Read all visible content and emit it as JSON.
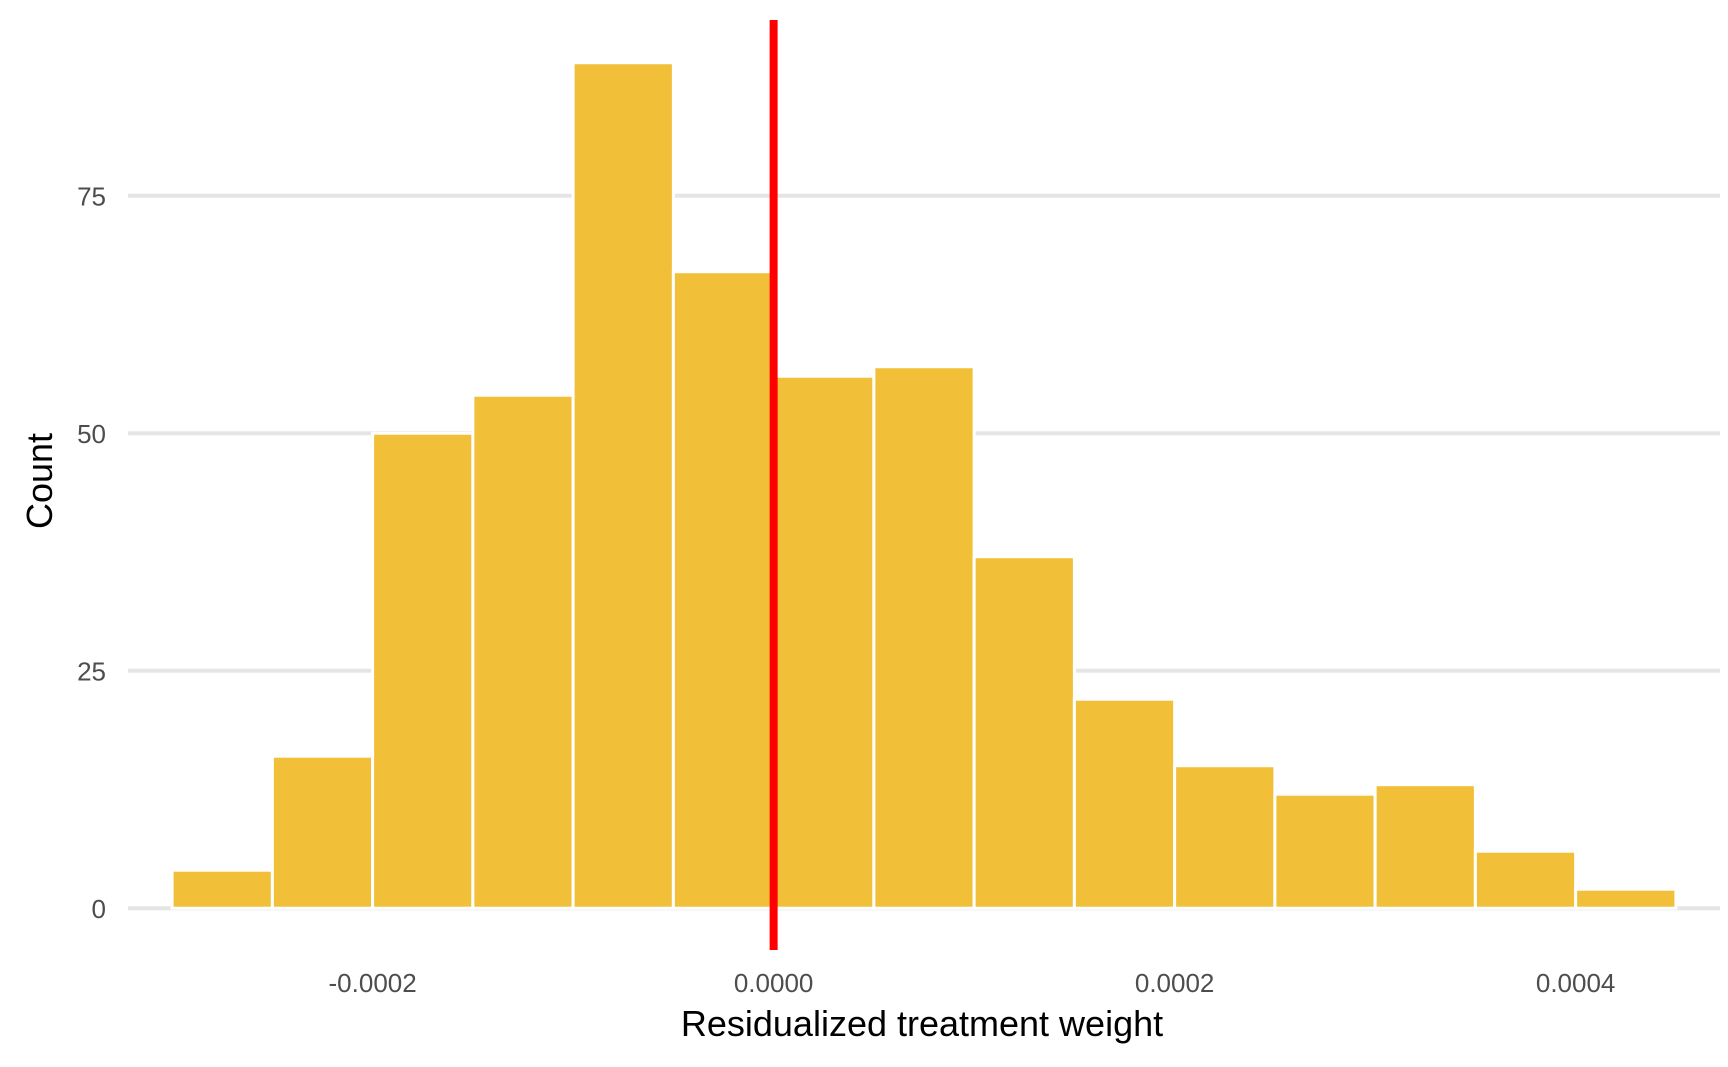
{
  "chart_data": {
    "type": "bar",
    "subtype": "histogram",
    "xlabel": "Residualized treatment weight",
    "ylabel": "Count",
    "bins": [
      {
        "x0": -0.0003,
        "x1": -0.00025,
        "count": 4
      },
      {
        "x0": -0.00025,
        "x1": -0.0002,
        "count": 16
      },
      {
        "x0": -0.0002,
        "x1": -0.00015,
        "count": 50
      },
      {
        "x0": -0.00015,
        "x1": -0.0001,
        "count": 54
      },
      {
        "x0": -0.0001,
        "x1": -5e-05,
        "count": 89
      },
      {
        "x0": -5e-05,
        "x1": 0.0,
        "count": 67
      },
      {
        "x0": 0.0,
        "x1": 5e-05,
        "count": 56
      },
      {
        "x0": 5e-05,
        "x1": 0.0001,
        "count": 57
      },
      {
        "x0": 0.0001,
        "x1": 0.00015,
        "count": 37
      },
      {
        "x0": 0.00015,
        "x1": 0.0002,
        "count": 22
      },
      {
        "x0": 0.0002,
        "x1": 0.00025,
        "count": 15
      },
      {
        "x0": 0.00025,
        "x1": 0.0003,
        "count": 12
      },
      {
        "x0": 0.0003,
        "x1": 0.00035,
        "count": 13
      },
      {
        "x0": 0.00035,
        "x1": 0.0004,
        "count": 6
      },
      {
        "x0": 0.0004,
        "x1": 0.00045,
        "count": 2
      }
    ],
    "vline": {
      "x": 0.0,
      "color": "#ff0000"
    },
    "xticks": [
      {
        "value": -0.0002,
        "label": "-0.0002"
      },
      {
        "value": 0.0,
        "label": "0.0000"
      },
      {
        "value": 0.0002,
        "label": "0.0002"
      },
      {
        "value": 0.0004,
        "label": "0.0004"
      }
    ],
    "yticks": [
      {
        "value": 0,
        "label": "0"
      },
      {
        "value": 25,
        "label": "25"
      },
      {
        "value": 50,
        "label": "50"
      },
      {
        "value": 75,
        "label": "75"
      }
    ],
    "xlim": [
      -0.000322,
      0.000472
    ],
    "ylim": [
      -4.4,
      93.5
    ],
    "grid": "horizontal major",
    "legend": "none",
    "colors": {
      "bar_fill": "#f2bf38",
      "bar_outline": "#ffffff",
      "grid": "#e5e5e5",
      "vline": "#ff0000"
    }
  }
}
